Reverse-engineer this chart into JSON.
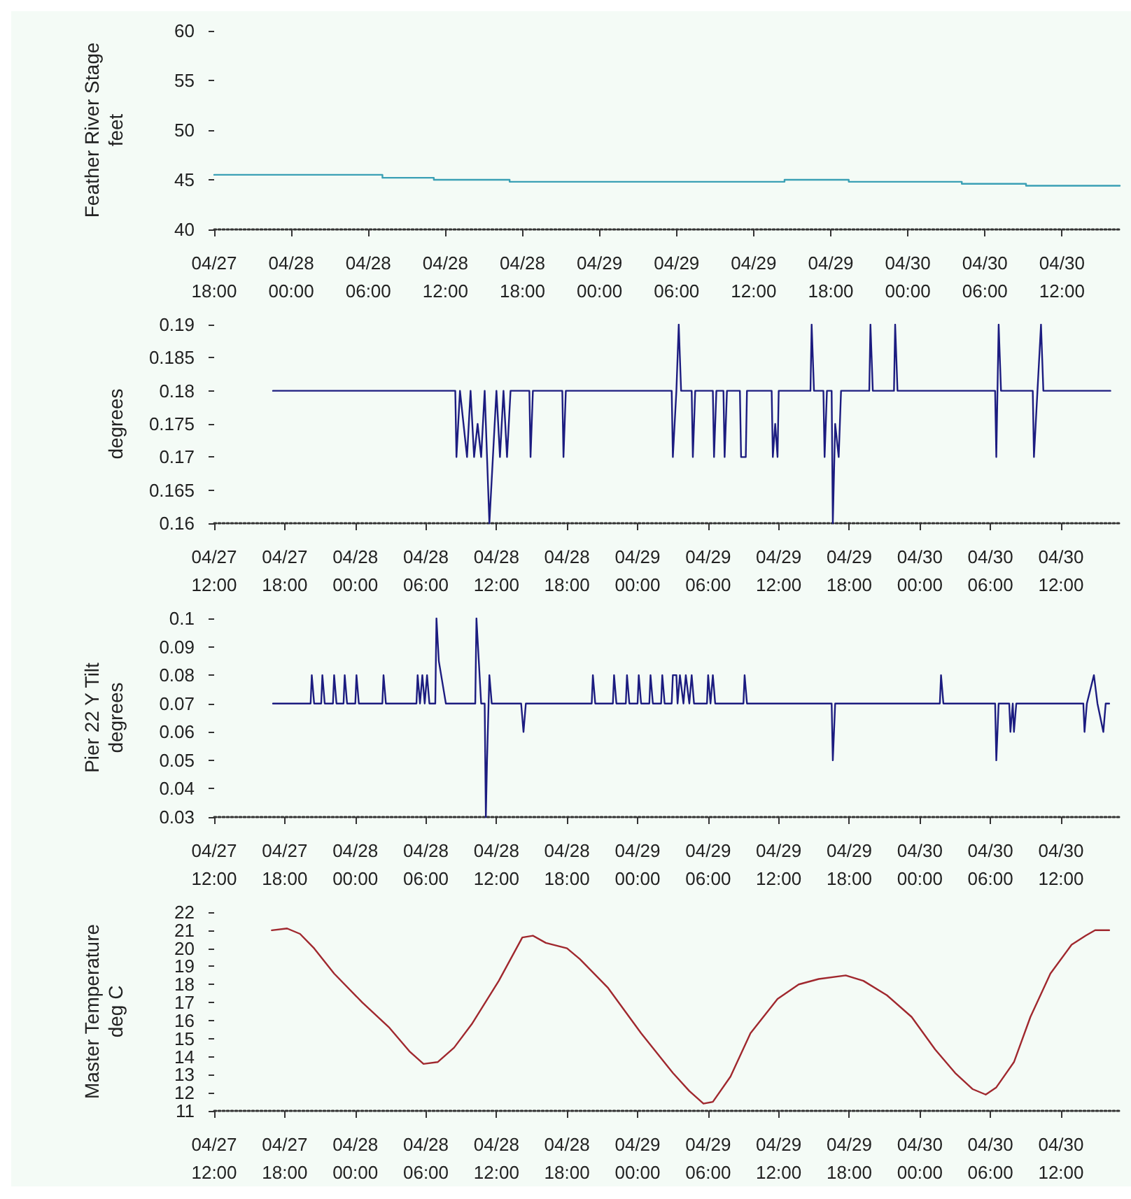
{
  "chart_data": [
    {
      "type": "step",
      "ylabel": "Feather River Stage\nfeet",
      "color": "#3aa0b5",
      "marker": "none",
      "line_style": "solid",
      "grid": false,
      "x": [
        "--04-27T18:00",
        "--04-28T07:06",
        "--04-28T11:06",
        "--04-28T17:00",
        "--04-29T14:24",
        "--04-29T19:24",
        "--04-30T04:12",
        "--04-30T09:12",
        "--04-30T16:30"
      ],
      "values": [
        45.5,
        45.2,
        45.0,
        44.8,
        45.0,
        44.8,
        44.6,
        44.4,
        44.4
      ],
      "xlim": [
        "--04-27T18:00",
        "--04-30T16:30"
      ],
      "xticks": [
        {
          "value": "--04-27T18:00",
          "label": "04/27\n18:00"
        },
        {
          "value": "--04-28T00:00",
          "label": "04/28\n00:00"
        },
        {
          "value": "--04-28T06:00",
          "label": "04/28\n06:00"
        },
        {
          "value": "--04-28T12:00",
          "label": "04/28\n12:00"
        },
        {
          "value": "--04-28T18:00",
          "label": "04/28\n18:00"
        },
        {
          "value": "--04-29T00:00",
          "label": "04/29\n00:00"
        },
        {
          "value": "--04-29T06:00",
          "label": "04/29\n06:00"
        },
        {
          "value": "--04-29T12:00",
          "label": "04/29\n12:00"
        },
        {
          "value": "--04-29T18:00",
          "label": "04/29\n18:00"
        },
        {
          "value": "--04-30T00:00",
          "label": "04/30\n00:00"
        },
        {
          "value": "--04-30T06:00",
          "label": "04/30\n06:00"
        },
        {
          "value": "--04-30T12:00",
          "label": "04/30\n12:00"
        }
      ],
      "ylim": [
        40,
        60
      ],
      "yticks": [
        40,
        45,
        50,
        55,
        60
      ]
    },
    {
      "type": "line",
      "ylabel": "degrees",
      "color": "#1c1c80",
      "marker": "none",
      "line_style": "solid",
      "grid": false,
      "x": [
        "--04-27T17:00",
        "--04-28T08:30",
        "--04-28T08:36",
        "--04-28T08:54",
        "--04-28T09:12",
        "--04-28T09:30",
        "--04-28T09:48",
        "--04-28T10:06",
        "--04-28T10:24",
        "--04-28T10:42",
        "--04-28T11:00",
        "--04-28T11:24",
        "--04-28T11:42",
        "--04-28T12:00",
        "--04-28T12:18",
        "--04-28T12:36",
        "--04-28T12:54",
        "--04-28T13:12",
        "--04-28T14:48",
        "--04-28T14:54",
        "--04-28T15:06",
        "--04-28T17:36",
        "--04-28T17:42",
        "--04-28T17:54",
        "--04-29T02:54",
        "--04-29T03:00",
        "--04-29T03:18",
        "--04-29T03:30",
        "--04-29T03:42",
        "--04-29T04:36",
        "--04-29T04:42",
        "--04-29T04:54",
        "--04-29T06:24",
        "--04-29T06:30",
        "--04-29T06:42",
        "--04-29T07:18",
        "--04-29T07:24",
        "--04-29T07:36",
        "--04-29T08:42",
        "--04-29T08:48",
        "--04-29T09:12",
        "--04-29T09:18",
        "--04-29T11:24",
        "--04-29T11:30",
        "--04-29T11:42",
        "--04-29T11:54",
        "--04-29T12:00",
        "--04-29T14:42",
        "--04-29T14:48",
        "--04-29T15:00",
        "--04-29T15:48",
        "--04-29T15:54",
        "--04-29T16:06",
        "--04-29T16:30",
        "--04-29T16:36",
        "--04-29T16:48",
        "--04-29T17:06",
        "--04-29T17:18",
        "--04-29T19:42",
        "--04-29T19:48",
        "--04-29T20:00",
        "--04-29T21:48",
        "--04-29T21:54",
        "--04-29T22:06",
        "--04-30T06:24",
        "--04-30T06:30",
        "--04-30T06:42",
        "--04-30T06:54",
        "--04-30T09:36",
        "--04-30T09:42",
        "--04-30T10:00",
        "--04-30T10:18",
        "--04-30T10:30",
        "--04-30T16:12"
      ],
      "values": [
        0.18,
        0.18,
        0.17,
        0.18,
        0.175,
        0.17,
        0.18,
        0.17,
        0.175,
        0.17,
        0.18,
        0.16,
        0.17,
        0.18,
        0.17,
        0.18,
        0.17,
        0.18,
        0.18,
        0.17,
        0.18,
        0.18,
        0.17,
        0.18,
        0.18,
        0.17,
        0.18,
        0.19,
        0.18,
        0.18,
        0.17,
        0.18,
        0.18,
        0.17,
        0.18,
        0.18,
        0.17,
        0.18,
        0.18,
        0.17,
        0.17,
        0.18,
        0.18,
        0.17,
        0.175,
        0.17,
        0.18,
        0.18,
        0.19,
        0.18,
        0.18,
        0.17,
        0.18,
        0.18,
        0.16,
        0.175,
        0.17,
        0.18,
        0.18,
        0.19,
        0.18,
        0.18,
        0.19,
        0.18,
        0.18,
        0.17,
        0.19,
        0.18,
        0.18,
        0.17,
        0.18,
        0.19,
        0.18,
        0.18
      ],
      "xlim": [
        "--04-27T12:00",
        "--04-30T17:00"
      ],
      "xticks": [
        {
          "value": "--04-27T12:00",
          "label": "04/27\n12:00"
        },
        {
          "value": "--04-27T18:00",
          "label": "04/27\n18:00"
        },
        {
          "value": "--04-28T00:00",
          "label": "04/28\n00:00"
        },
        {
          "value": "--04-28T06:00",
          "label": "04/28\n06:00"
        },
        {
          "value": "--04-28T12:00",
          "label": "04/28\n12:00"
        },
        {
          "value": "--04-28T18:00",
          "label": "04/28\n18:00"
        },
        {
          "value": "--04-29T00:00",
          "label": "04/29\n00:00"
        },
        {
          "value": "--04-29T06:00",
          "label": "04/29\n06:00"
        },
        {
          "value": "--04-29T12:00",
          "label": "04/29\n12:00"
        },
        {
          "value": "--04-29T18:00",
          "label": "04/29\n18:00"
        },
        {
          "value": "--04-30T00:00",
          "label": "04/30\n00:00"
        },
        {
          "value": "--04-30T06:00",
          "label": "04/30\n06:00"
        },
        {
          "value": "--04-30T12:00",
          "label": "04/30\n12:00"
        }
      ],
      "ylim": [
        0.16,
        0.19
      ],
      "yticks": [
        0.16,
        0.165,
        0.17,
        0.175,
        0.18,
        0.185,
        0.19
      ]
    },
    {
      "type": "line",
      "ylabel": "Pier 22 Y Tilt\ndegrees",
      "color": "#1c1c80",
      "marker": "none",
      "line_style": "solid",
      "grid": false,
      "x": [
        "--04-27T17:00",
        "--04-27T20:12",
        "--04-27T20:18",
        "--04-27T20:30",
        "--04-27T21:06",
        "--04-27T21:12",
        "--04-27T21:24",
        "--04-27T22:06",
        "--04-27T22:12",
        "--04-27T22:24",
        "--04-27T23:00",
        "--04-27T23:06",
        "--04-27T23:18",
        "--04-28T00:00",
        "--04-28T00:06",
        "--04-28T00:18",
        "--04-28T02:18",
        "--04-28T02:24",
        "--04-28T02:36",
        "--04-28T05:12",
        "--04-28T05:18",
        "--04-28T05:30",
        "--04-28T05:42",
        "--04-28T05:54",
        "--04-28T06:06",
        "--04-28T06:18",
        "--04-28T06:48",
        "--04-28T06:54",
        "--04-28T07:06",
        "--04-28T07:30",
        "--04-28T07:42",
        "--04-28T10:12",
        "--04-28T10:18",
        "--04-28T10:30",
        "--04-28T10:42",
        "--04-28T11:00",
        "--04-28T11:06",
        "--04-28T11:12",
        "--04-28T11:24",
        "--04-28T11:36",
        "--04-28T14:06",
        "--04-28T14:18",
        "--04-28T14:30",
        "--04-28T20:06",
        "--04-28T20:12",
        "--04-28T20:24",
        "--04-28T21:54",
        "--04-28T22:00",
        "--04-28T22:12",
        "--04-28T23:00",
        "--04-28T23:06",
        "--04-28T23:18",
        "--04-29T00:00",
        "--04-29T00:06",
        "--04-29T00:18",
        "--04-29T01:00",
        "--04-29T01:06",
        "--04-29T01:18",
        "--04-29T02:00",
        "--04-29T02:06",
        "--04-29T02:18",
        "--04-29T02:54",
        "--04-29T03:00",
        "--04-29T03:18",
        "--04-29T03:24",
        "--04-29T03:36",
        "--04-29T03:54",
        "--04-29T04:06",
        "--04-29T04:24",
        "--04-29T04:36",
        "--04-29T04:48",
        "--04-29T05:54",
        "--04-29T06:00",
        "--04-29T06:12",
        "--04-29T06:24",
        "--04-29T06:36",
        "--04-29T09:00",
        "--04-29T09:06",
        "--04-29T09:18",
        "--04-29T16:30",
        "--04-29T16:36",
        "--04-29T16:48",
        "--04-30T01:42",
        "--04-30T01:48",
        "--04-30T02:00",
        "--04-30T06:24",
        "--04-30T06:30",
        "--04-30T06:42",
        "--04-30T07:36",
        "--04-30T07:42",
        "--04-30T07:54",
        "--04-30T08:00",
        "--04-30T08:12",
        "--04-30T13:54",
        "--04-30T14:00",
        "--04-30T14:12",
        "--04-30T14:48",
        "--04-30T15:06",
        "--04-30T15:36",
        "--04-30T15:48",
        "--04-30T16:06"
      ],
      "values": [
        0.07,
        0.07,
        0.08,
        0.07,
        0.07,
        0.08,
        0.07,
        0.07,
        0.08,
        0.07,
        0.07,
        0.08,
        0.07,
        0.07,
        0.08,
        0.07,
        0.07,
        0.08,
        0.07,
        0.07,
        0.08,
        0.07,
        0.08,
        0.07,
        0.08,
        0.07,
        0.07,
        0.1,
        0.085,
        0.075,
        0.07,
        0.07,
        0.1,
        0.085,
        0.07,
        0.07,
        0.03,
        0.05,
        0.08,
        0.07,
        0.07,
        0.06,
        0.07,
        0.07,
        0.08,
        0.07,
        0.07,
        0.08,
        0.07,
        0.07,
        0.08,
        0.07,
        0.07,
        0.08,
        0.07,
        0.07,
        0.08,
        0.07,
        0.07,
        0.08,
        0.07,
        0.07,
        0.08,
        0.08,
        0.07,
        0.08,
        0.07,
        0.08,
        0.07,
        0.08,
        0.07,
        0.07,
        0.08,
        0.07,
        0.08,
        0.07,
        0.07,
        0.08,
        0.07,
        0.07,
        0.05,
        0.07,
        0.07,
        0.08,
        0.07,
        0.07,
        0.05,
        0.07,
        0.07,
        0.06,
        0.07,
        0.06,
        0.07,
        0.07,
        0.06,
        0.07,
        0.08,
        0.07,
        0.06,
        0.07,
        0.07
      ],
      "xlim": [
        "--04-27T12:00",
        "--04-30T17:00"
      ],
      "xticks": [
        {
          "value": "--04-27T12:00",
          "label": "04/27\n12:00"
        },
        {
          "value": "--04-27T18:00",
          "label": "04/27\n18:00"
        },
        {
          "value": "--04-28T00:00",
          "label": "04/28\n00:00"
        },
        {
          "value": "--04-28T06:00",
          "label": "04/28\n06:00"
        },
        {
          "value": "--04-28T12:00",
          "label": "04/28\n12:00"
        },
        {
          "value": "--04-28T18:00",
          "label": "04/28\n18:00"
        },
        {
          "value": "--04-29T00:00",
          "label": "04/29\n00:00"
        },
        {
          "value": "--04-29T06:00",
          "label": "04/29\n06:00"
        },
        {
          "value": "--04-29T12:00",
          "label": "04/29\n12:00"
        },
        {
          "value": "--04-29T18:00",
          "label": "04/29\n18:00"
        },
        {
          "value": "--04-30T00:00",
          "label": "04/30\n00:00"
        },
        {
          "value": "--04-30T06:00",
          "label": "04/30\n06:00"
        },
        {
          "value": "--04-30T12:00",
          "label": "04/30\n12:00"
        }
      ],
      "ylim": [
        0.03,
        0.1
      ],
      "yticks": [
        0.03,
        0.04,
        0.05,
        0.06,
        0.07,
        0.08,
        0.09,
        0.1
      ]
    },
    {
      "type": "line",
      "ylabel": "Master Temperature\ndeg C",
      "color": "#a0282e",
      "marker": "none",
      "line_style": "solid",
      "grid": false,
      "x": [
        "--04-27T16:54",
        "--04-27T18:12",
        "--04-27T19:18",
        "--04-27T20:30",
        "--04-27T22:12",
        "--04-28T00:36",
        "--04-28T02:54",
        "--04-28T04:36",
        "--04-28T05:48",
        "--04-28T07:00",
        "--04-28T08:24",
        "--04-28T09:54",
        "--04-28T12:12",
        "--04-28T14:12",
        "--04-28T15:06",
        "--04-28T16:12",
        "--04-28T18:00",
        "--04-28T19:06",
        "--04-28T21:30",
        "--04-29T00:18",
        "--04-29T03:00",
        "--04-29T04:24",
        "--04-29T05:36",
        "--04-29T06:24",
        "--04-29T07:54",
        "--04-29T09:36",
        "--04-29T11:54",
        "--04-29T13:42",
        "--04-29T15:24",
        "--04-29T17:42",
        "--04-29T19:12",
        "--04-29T21:12",
        "--04-29T23:18",
        "--04-30T01:18",
        "--04-30T03:00",
        "--04-30T04:30",
        "--04-30T05:36",
        "--04-30T06:30",
        "--04-30T08:00",
        "--04-30T09:24",
        "--04-30T11:06",
        "--04-30T12:54",
        "--04-30T14:06",
        "--04-30T14:54",
        "--04-30T16:06"
      ],
      "values": [
        21.0,
        21.1,
        20.8,
        20.0,
        18.6,
        17.0,
        15.6,
        14.3,
        13.6,
        13.7,
        14.5,
        15.8,
        18.2,
        20.6,
        20.7,
        20.3,
        20.0,
        19.4,
        17.8,
        15.3,
        13.1,
        12.1,
        11.4,
        11.5,
        12.9,
        15.3,
        17.2,
        18.0,
        18.3,
        18.5,
        18.2,
        17.4,
        16.2,
        14.4,
        13.1,
        12.2,
        11.9,
        12.3,
        13.7,
        16.2,
        18.6,
        20.2,
        20.7,
        21.0,
        21.0
      ],
      "xlim": [
        "--04-27T12:00",
        "--04-30T17:00"
      ],
      "xticks": [
        {
          "value": "--04-27T12:00",
          "label": "04/27\n12:00"
        },
        {
          "value": "--04-27T18:00",
          "label": "04/27\n18:00"
        },
        {
          "value": "--04-28T00:00",
          "label": "04/28\n00:00"
        },
        {
          "value": "--04-28T06:00",
          "label": "04/28\n06:00"
        },
        {
          "value": "--04-28T12:00",
          "label": "04/28\n12:00"
        },
        {
          "value": "--04-28T18:00",
          "label": "04/28\n18:00"
        },
        {
          "value": "--04-29T00:00",
          "label": "04/29\n00:00"
        },
        {
          "value": "--04-29T06:00",
          "label": "04/29\n06:00"
        },
        {
          "value": "--04-29T12:00",
          "label": "04/29\n12:00"
        },
        {
          "value": "--04-29T18:00",
          "label": "04/29\n18:00"
        },
        {
          "value": "--04-30T00:00",
          "label": "04/30\n00:00"
        },
        {
          "value": "--04-30T06:00",
          "label": "04/30\n06:00"
        },
        {
          "value": "--04-30T12:00",
          "label": "04/30\n12:00"
        }
      ],
      "ylim": [
        11,
        22
      ],
      "yticks": [
        11,
        12,
        13,
        14,
        15,
        16,
        17,
        18,
        19,
        20,
        21,
        22
      ]
    }
  ]
}
